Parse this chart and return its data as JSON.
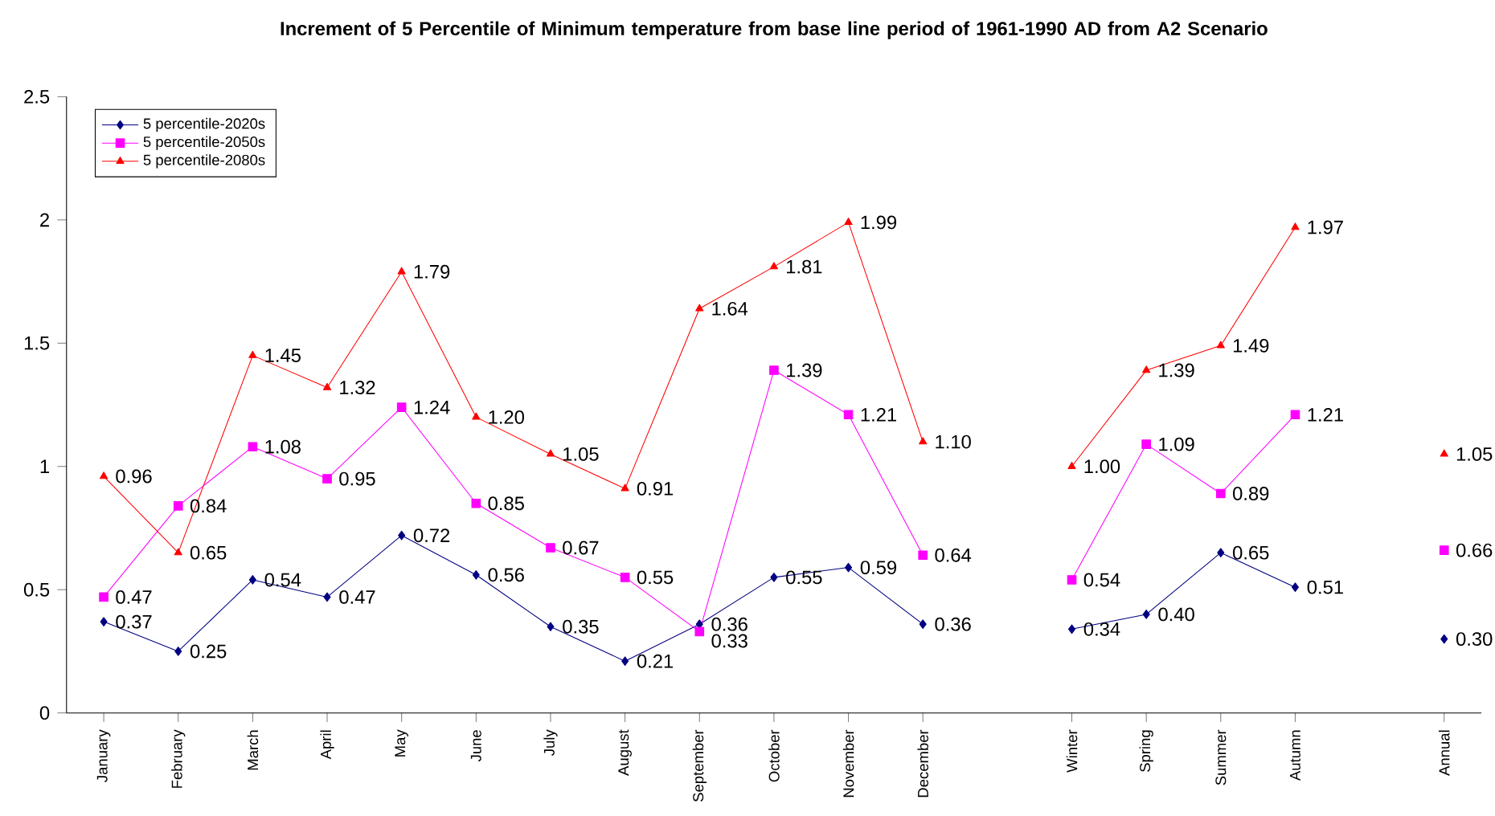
{
  "chart_data": {
    "type": "line",
    "title": "Increment of 5 Percentile of Minimum temperature from base line period of 1961-1990 AD from A2 Scenario",
    "categories": [
      "January",
      "February",
      "March",
      "April",
      "May",
      "June",
      "July",
      "August",
      "September",
      "October",
      "November",
      "December",
      null,
      "Winter",
      "Spring",
      "Summer",
      "Autumn",
      null,
      "Annual"
    ],
    "series": [
      {
        "name": "5 percentile-2020s",
        "color": "#000080",
        "marker": "diamond",
        "values": [
          0.37,
          0.25,
          0.54,
          0.47,
          0.72,
          0.56,
          0.35,
          0.21,
          0.36,
          0.55,
          0.59,
          0.36,
          null,
          0.34,
          0.4,
          0.65,
          0.51,
          null,
          0.3
        ],
        "value_labels": [
          "0.37",
          "0.25",
          "0.54",
          "0.47",
          "0.72",
          "0.56",
          "0.35",
          "0.21",
          "0.36",
          "0.55",
          "0.59",
          "0.36",
          null,
          "0.34",
          "0.40",
          "0.65",
          "0.51",
          null,
          "0.30"
        ]
      },
      {
        "name": "5 percentile-2050s",
        "color": "#ff00ff",
        "marker": "square",
        "values": [
          0.47,
          0.84,
          1.08,
          0.95,
          1.24,
          0.85,
          0.67,
          0.55,
          0.33,
          1.39,
          1.21,
          0.64,
          null,
          0.54,
          1.09,
          0.89,
          1.21,
          null,
          0.66
        ],
        "value_labels": [
          "0.47",
          "0.84",
          "1.08",
          "0.95",
          "1.24",
          "0.85",
          "0.67",
          "0.55",
          "0.33",
          "1.39",
          "1.21",
          "0.64",
          null,
          "0.54",
          "1.09",
          "0.89",
          "1.21",
          null,
          "0.66"
        ]
      },
      {
        "name": "5 percentile-2080s",
        "color": "#ff0000",
        "marker": "triangle",
        "values": [
          0.96,
          0.65,
          1.45,
          1.32,
          1.79,
          1.2,
          1.05,
          0.91,
          1.64,
          1.81,
          1.99,
          1.1,
          null,
          1.0,
          1.39,
          1.49,
          1.97,
          null,
          1.05
        ],
        "value_labels": [
          "0.96",
          "0.65",
          "1.45",
          "1.32",
          "1.79",
          "1.20",
          "1.05",
          "0.91",
          "1.64",
          "1.81",
          "1.99",
          "1.10",
          null,
          "1.00",
          "1.39",
          "1.49",
          "1.97",
          null,
          "1.05"
        ]
      }
    ],
    "ylim": [
      0,
      2.5
    ],
    "yticks": [
      0,
      0.5,
      1,
      1.5,
      2,
      2.5
    ],
    "grid": false,
    "legend": "top left",
    "line_style": "solid"
  }
}
